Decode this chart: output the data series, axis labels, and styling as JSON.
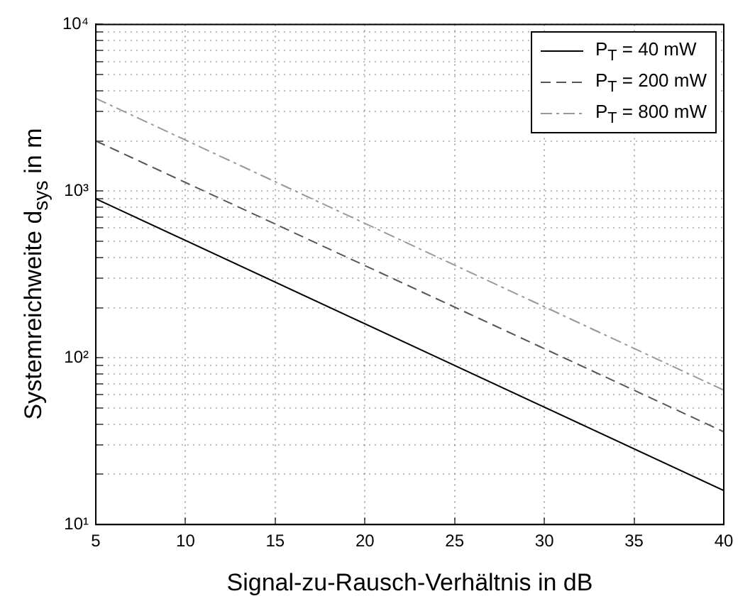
{
  "chart_data": {
    "type": "line",
    "xlabel": "Signal-zu-Rausch-Verhältnis in dB",
    "ylabel": "Systemreichweite d$_{sys}$ in m",
    "x": [
      5,
      40
    ],
    "series": [
      {
        "name": "P$_{T}$ = 40 mW",
        "color": "#000000",
        "line_style": "solid",
        "values": [
          900,
          16
        ]
      },
      {
        "name": "P$_{T}$ = 200 mW",
        "color": "#555555",
        "line_style": "dashed",
        "values": [
          2000,
          36
        ]
      },
      {
        "name": "P$_{T}$ = 800 mW",
        "color": "#999999",
        "line_style": "dashdot",
        "values": [
          3600,
          64
        ]
      }
    ],
    "xlim": [
      5,
      40
    ],
    "xticks": [
      5,
      10,
      15,
      20,
      25,
      30,
      35,
      40
    ],
    "log": "y",
    "ylim": [
      10,
      10000
    ],
    "yticks": [
      {
        "value": 10,
        "label": "10¹"
      },
      {
        "value": 20,
        "label": null
      },
      {
        "value": 30,
        "label": null
      },
      {
        "value": 40,
        "label": null
      },
      {
        "value": 50,
        "label": null
      },
      {
        "value": 60,
        "label": null
      },
      {
        "value": 70,
        "label": null
      },
      {
        "value": 80,
        "label": null
      },
      {
        "value": 90,
        "label": null
      },
      {
        "value": 100,
        "label": "10²"
      },
      {
        "value": 200,
        "label": null
      },
      {
        "value": 300,
        "label": null
      },
      {
        "value": 400,
        "label": null
      },
      {
        "value": 500,
        "label": null
      },
      {
        "value": 600,
        "label": null
      },
      {
        "value": 700,
        "label": null
      },
      {
        "value": 800,
        "label": null
      },
      {
        "value": 900,
        "label": null
      },
      {
        "value": 1000,
        "label": "10³"
      },
      {
        "value": 2000,
        "label": null
      },
      {
        "value": 3000,
        "label": null
      },
      {
        "value": 4000,
        "label": null
      },
      {
        "value": 5000,
        "label": null
      },
      {
        "value": 6000,
        "label": null
      },
      {
        "value": 7000,
        "label": null
      },
      {
        "value": 8000,
        "label": null
      },
      {
        "value": 9000,
        "label": null
      },
      {
        "value": 10000,
        "label": "10⁴"
      }
    ],
    "grid": true,
    "legend": "top right",
    "marker": "none"
  }
}
